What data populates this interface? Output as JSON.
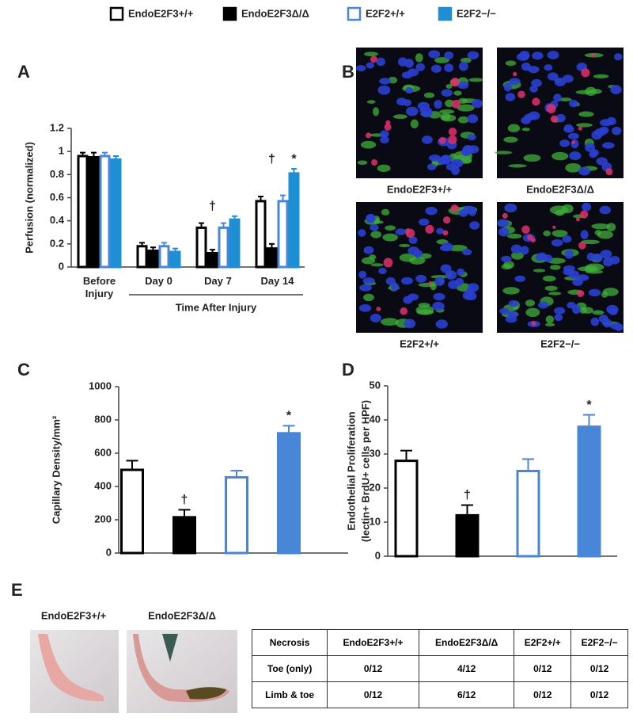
{
  "panel_labels": [
    "A",
    "B",
    "C",
    "D",
    "E"
  ],
  "chart_data": [
    {
      "type": "bar",
      "ylabel": [
        "Perfusion (normalized)"
      ],
      "xlabel": "Time After Injury",
      "categories": [
        "Before Injury",
        "Day 0",
        "Day 7",
        "Day 14"
      ],
      "ylim": [
        0,
        1.2
      ],
      "yticks": [
        0,
        0.2,
        0.4,
        0.6,
        0.8,
        1,
        1.2
      ],
      "series": [
        {
          "name": "EndoE2F3+/+",
          "color": "#ffffff",
          "edgecolor": "#000000",
          "values": [
            0.96,
            0.18,
            0.34,
            0.57
          ],
          "errors": [
            0.03,
            0.03,
            0.04,
            0.04
          ]
        },
        {
          "name": "EndoE2F3Δ/Δ",
          "color": "#000000",
          "edgecolor": "#000000",
          "values": [
            0.95,
            0.14,
            0.12,
            0.16
          ],
          "errors": [
            0.04,
            0.03,
            0.03,
            0.04
          ]
        },
        {
          "name": "E2F2+/+",
          "color": "#ffffff",
          "edgecolor": "#4a86d8",
          "values": [
            0.96,
            0.18,
            0.34,
            0.57
          ],
          "errors": [
            0.03,
            0.03,
            0.04,
            0.05
          ]
        },
        {
          "name": "E2F2−/−",
          "color": "#1e8fd5",
          "edgecolor": "#1e8fd5",
          "values": [
            0.93,
            0.13,
            0.41,
            0.81
          ],
          "errors": [
            0.03,
            0.03,
            0.03,
            0.04
          ]
        }
      ],
      "annotations": [
        {
          "text": "†",
          "series": 1,
          "index": 2
        },
        {
          "text": "†",
          "series": 1,
          "index": 3
        },
        {
          "text": "*",
          "series": 3,
          "index": 3
        }
      ]
    },
    {
      "type": "bar",
      "ylabel": [
        "Capillary Density/mm²"
      ],
      "values": [
        500,
        215,
        455,
        720
      ],
      "errors": [
        55,
        45,
        40,
        45
      ],
      "colors": [
        "#ffffff",
        "#000000",
        "#ffffff",
        "#4a86d8"
      ],
      "edgecolors": [
        "#000000",
        "#000000",
        "#4a86d8",
        "#4a86d8"
      ],
      "ylim": [
        0,
        1000
      ],
      "yticks": [
        0,
        200,
        400,
        600,
        800,
        1000
      ],
      "annotations": [
        {
          "text": "†",
          "index": 1
        },
        {
          "text": "*",
          "index": 3
        }
      ]
    },
    {
      "type": "bar",
      "ylabel": [
        "Endothelial Proliferation",
        "(lectin+ BrdU+ cells per HPF)"
      ],
      "values": [
        28,
        12,
        25,
        38
      ],
      "errors": [
        3,
        3,
        3.5,
        3.5
      ],
      "colors": [
        "#ffffff",
        "#000000",
        "#ffffff",
        "#4a86d8"
      ],
      "edgecolors": [
        "#000000",
        "#000000",
        "#4a86d8",
        "#4a86d8"
      ],
      "ylim": [
        0,
        50
      ],
      "yticks": [
        0,
        10,
        20,
        30,
        40,
        50
      ],
      "annotations": [
        {
          "text": "†",
          "index": 1
        },
        {
          "text": "*",
          "index": 3
        }
      ]
    }
  ],
  "micrographs": [
    "EndoE2F3+/+",
    "EndoE2F3Δ/Δ",
    "E2F2+/+",
    "E2F2−/−"
  ],
  "photos": [
    "EndoE2F3+/+",
    "EndoE2F3Δ/Δ"
  ],
  "table": {
    "header": [
      "Necrosis",
      "EndoE2F3+/+",
      "EndoE2F3Δ/Δ",
      "E2F2+/+",
      "E2F2−/−"
    ],
    "rows": [
      [
        "Toe (only)",
        "0/12",
        "4/12",
        "0/12",
        "0/12"
      ],
      [
        "Limb & toe",
        "0/12",
        "6/12",
        "0/12",
        "0/12"
      ]
    ]
  }
}
